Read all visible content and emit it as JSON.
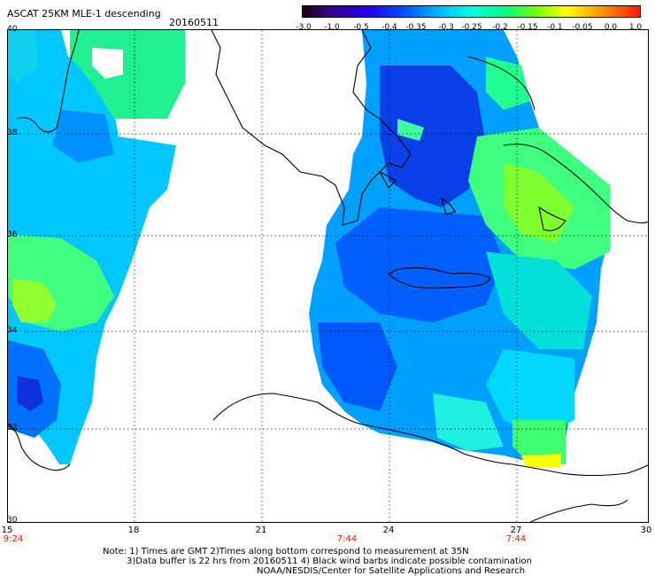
{
  "header": {
    "title": "ASCAT 25KM MLE-1 descending",
    "date": "20160511"
  },
  "colorbar": {
    "ticks": [
      "-3.0",
      "-1.0",
      "-0.5",
      "-0.4",
      "-0.35",
      "-0.3",
      "-0.25",
      "-0.2",
      "-0.15",
      "-0.1",
      "-0.05",
      "0.0",
      "1.0"
    ],
    "colors": [
      "#1a0010",
      "#3b0080",
      "#2200ee",
      "#0050ff",
      "#00b4ff",
      "#00ffe0",
      "#00ff80",
      "#80ff00",
      "#ffff00",
      "#ff9a00",
      "#ff1a00"
    ]
  },
  "map": {
    "lon_labels": [
      "15",
      "18",
      "21",
      "24",
      "27",
      "30"
    ],
    "lat_labels": [
      "40",
      "38",
      "36",
      "34",
      "32",
      "30"
    ],
    "pass_times": [
      "9:24",
      "7:44",
      "7:44"
    ],
    "swath_colors": {
      "deep": "#0a2ee0",
      "blue": "#0060ff",
      "mid": "#00a0ff",
      "cyan": "#00d8ff",
      "aqua": "#00ffd8",
      "green": "#20ff60",
      "lime": "#90ff20",
      "yellow": "#ffff00"
    }
  },
  "footer": {
    "note1": "Note: 1) Times are GMT 2)Times along bottom correspond to measurement at 35N",
    "note2": "3)Data buffer is 22 hrs from 20160511 4) Black wind barbs indicate possible contamination",
    "credit": "NOAA/NESDIS/Center for Satellite Applications and Research"
  }
}
